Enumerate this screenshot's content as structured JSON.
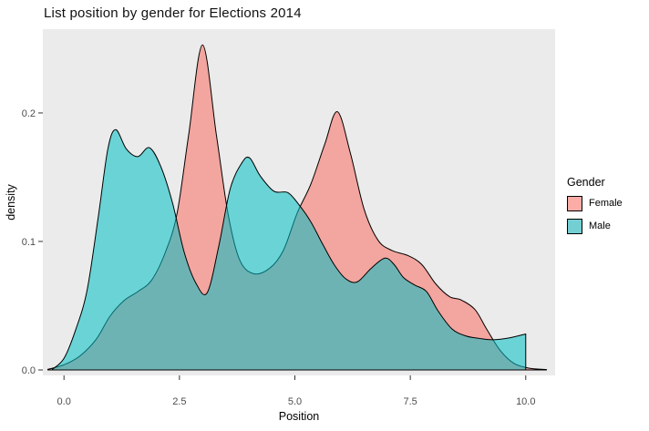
{
  "title": "List position by gender for Elections 2014",
  "legend": {
    "title": "Gender",
    "items": [
      {
        "label": "Female",
        "key_color": "#FBACA7"
      },
      {
        "label": "Male",
        "key_color": "#73CFD2"
      }
    ]
  },
  "colors": {
    "panel_background": "#EBEBEB",
    "female_fill": "rgba(248,118,109,0.60)",
    "male_fill": "rgba(0,191,196,0.55)",
    "outline": "#000000",
    "tick_mark": "#333333",
    "tick_label": "#4D4D4D",
    "axis_title": "#000000"
  },
  "chart_data": {
    "type": "area",
    "subtype": "density",
    "title": "List position by gender for Elections 2014",
    "xlabel": "Position",
    "ylabel": "density",
    "grid": false,
    "legend_position": "right",
    "xlim": [
      -0.458,
      10.636
    ],
    "ylim": [
      -0.00426,
      0.2652
    ],
    "x_ticks": {
      "values": [
        0,
        2.5,
        5,
        7.5,
        10
      ],
      "labels": [
        "0.0",
        "2.5",
        "5.0",
        "7.5",
        "10.0"
      ]
    },
    "y_ticks": {
      "values": [
        0,
        0.1,
        0.2
      ],
      "labels": [
        "0.0",
        "0.1",
        "0.2"
      ]
    },
    "series": [
      {
        "name": "Female",
        "fill": "rgba(248,118,109,0.60)",
        "stroke": "#000000",
        "points": [
          [
            -0.35,
            0.0005
          ],
          [
            0.0,
            0.004
          ],
          [
            0.35,
            0.011
          ],
          [
            0.7,
            0.024
          ],
          [
            1.0,
            0.042
          ],
          [
            1.3,
            0.054
          ],
          [
            1.6,
            0.061
          ],
          [
            1.9,
            0.07
          ],
          [
            2.2,
            0.092
          ],
          [
            2.45,
            0.122
          ],
          [
            2.7,
            0.183
          ],
          [
            3.0,
            0.253
          ],
          [
            3.3,
            0.183
          ],
          [
            3.55,
            0.122
          ],
          [
            3.8,
            0.086
          ],
          [
            4.1,
            0.075
          ],
          [
            4.45,
            0.079
          ],
          [
            4.75,
            0.093
          ],
          [
            5.05,
            0.122
          ],
          [
            5.35,
            0.145
          ],
          [
            5.65,
            0.176
          ],
          [
            5.92,
            0.201
          ],
          [
            6.2,
            0.169
          ],
          [
            6.5,
            0.125
          ],
          [
            6.8,
            0.101
          ],
          [
            7.1,
            0.093
          ],
          [
            7.45,
            0.089
          ],
          [
            7.75,
            0.082
          ],
          [
            8.05,
            0.067
          ],
          [
            8.35,
            0.057
          ],
          [
            8.6,
            0.0545
          ],
          [
            8.9,
            0.047
          ],
          [
            9.15,
            0.032
          ],
          [
            9.45,
            0.015
          ],
          [
            9.75,
            0.005
          ],
          [
            10.1,
            0.0012
          ],
          [
            10.45,
            0.0003
          ]
        ]
      },
      {
        "name": "Male",
        "fill": "rgba(0,191,196,0.55)",
        "stroke": "#000000",
        "points": [
          [
            -0.25,
            0.0005
          ],
          [
            0.0,
            0.009
          ],
          [
            0.25,
            0.031
          ],
          [
            0.5,
            0.062
          ],
          [
            0.75,
            0.121
          ],
          [
            0.95,
            0.172
          ],
          [
            1.12,
            0.187
          ],
          [
            1.35,
            0.172
          ],
          [
            1.6,
            0.166
          ],
          [
            1.85,
            0.173
          ],
          [
            2.1,
            0.158
          ],
          [
            2.35,
            0.13
          ],
          [
            2.6,
            0.092
          ],
          [
            2.85,
            0.068
          ],
          [
            3.1,
            0.06
          ],
          [
            3.35,
            0.096
          ],
          [
            3.6,
            0.141
          ],
          [
            3.85,
            0.161
          ],
          [
            4.02,
            0.165
          ],
          [
            4.25,
            0.151
          ],
          [
            4.55,
            0.139
          ],
          [
            4.85,
            0.138
          ],
          [
            5.1,
            0.128
          ],
          [
            5.35,
            0.115
          ],
          [
            5.6,
            0.098
          ],
          [
            5.85,
            0.082
          ],
          [
            6.1,
            0.071
          ],
          [
            6.35,
            0.0685
          ],
          [
            6.65,
            0.079
          ],
          [
            6.95,
            0.087
          ],
          [
            7.15,
            0.082
          ],
          [
            7.35,
            0.072
          ],
          [
            7.6,
            0.066
          ],
          [
            7.85,
            0.061
          ],
          [
            8.1,
            0.046
          ],
          [
            8.4,
            0.032
          ],
          [
            8.7,
            0.0265
          ],
          [
            9.0,
            0.0245
          ],
          [
            9.3,
            0.0235
          ],
          [
            9.65,
            0.025
          ],
          [
            10.0,
            0.028
          ]
        ]
      }
    ]
  }
}
